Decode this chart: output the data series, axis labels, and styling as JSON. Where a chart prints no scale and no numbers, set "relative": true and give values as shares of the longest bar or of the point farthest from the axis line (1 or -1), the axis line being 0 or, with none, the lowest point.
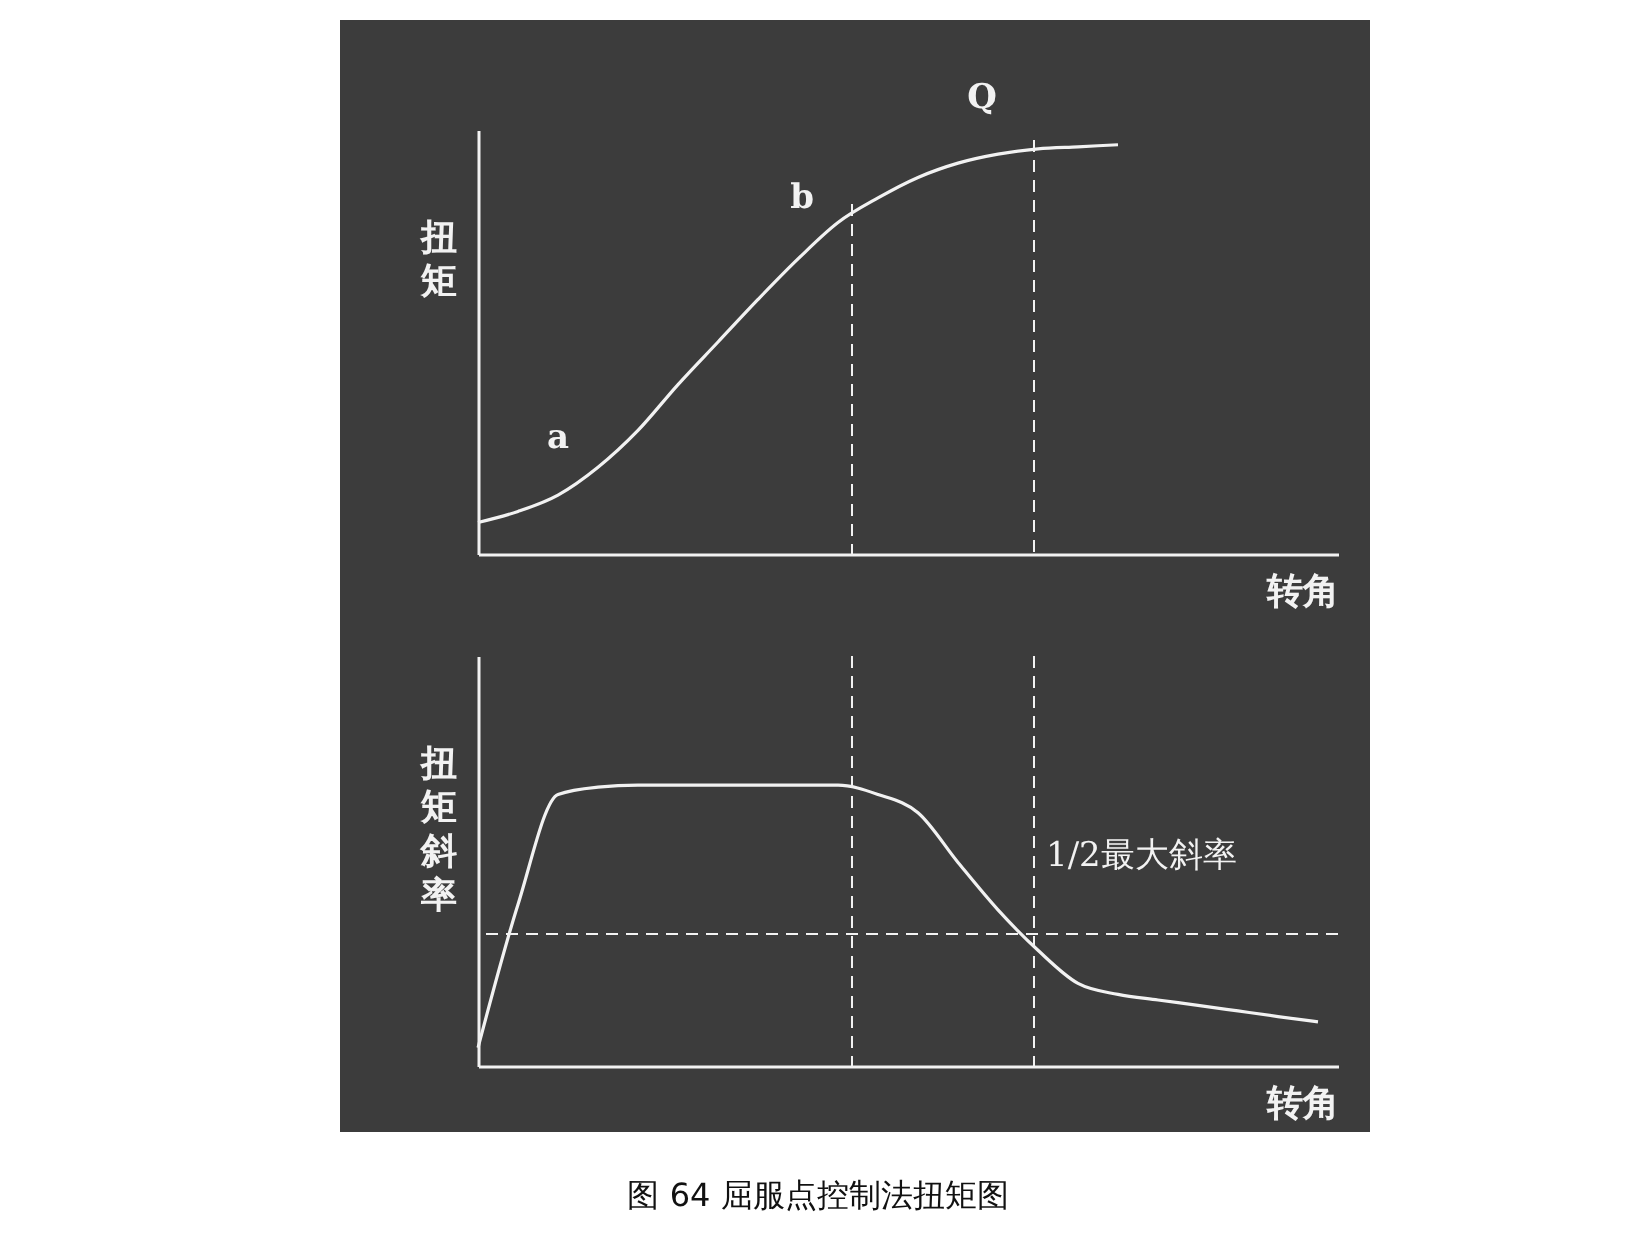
{
  "chart_data": [
    {
      "type": "line",
      "relative": true,
      "xlabel": "转角",
      "ylabel": "扭矩",
      "line_style": "solid",
      "categories": [
        null,
        null,
        null,
        null,
        null,
        null,
        null,
        null,
        null,
        null,
        null,
        null,
        null,
        null,
        null,
        null,
        null,
        null,
        null,
        null,
        null,
        null
      ],
      "series": [
        {
          "color": "#f2f2f2",
          "values": [
            0.077,
            0.104,
            0.144,
            0.212,
            0.302,
            0.414,
            0.518,
            0.622,
            0.721,
            0.81,
            0.87,
            0.92,
            0.955,
            0.977,
            0.99,
            0.995,
            1.0,
            null,
            null,
            null,
            null,
            null
          ]
        }
      ],
      "annotations": [
        "a",
        "b",
        "Q"
      ]
    },
    {
      "type": "line",
      "relative": true,
      "xlabel": "转角",
      "ylabel": "扭矩斜率",
      "line_style": "solid",
      "categories": [
        null,
        null,
        null,
        null,
        null,
        null,
        null,
        null,
        null,
        null,
        null,
        null,
        null,
        null,
        null,
        null,
        null,
        null,
        null,
        null,
        null,
        null
      ],
      "series": [
        {
          "color": "#f2f2f2",
          "values": [
            0.065,
            0.575,
            0.967,
            0.993,
            1.0,
            1.0,
            1.0,
            1.0,
            1.0,
            1.0,
            0.967,
            0.902,
            0.725,
            0.556,
            0.412,
            0.294,
            0.255,
            0.235,
            0.216,
            0.196,
            0.176,
            0.157
          ]
        }
      ],
      "ref_lines": [
        {
          "axis": "y",
          "value": 0.47,
          "label": "1/2最大斜率",
          "color": "#f2f2f2",
          "line_style": "dashed"
        }
      ],
      "annotations": [
        "图 64 屈服点控制法扭矩图"
      ]
    }
  ]
}
